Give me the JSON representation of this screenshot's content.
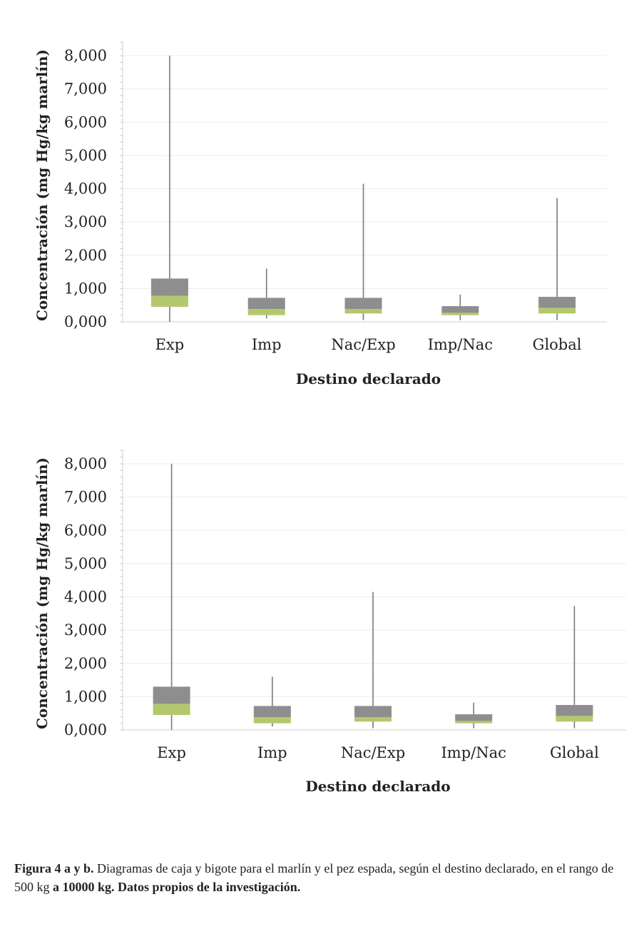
{
  "chart_data": [
    {
      "type": "boxplot",
      "title": "",
      "xlabel": "Destino declarado",
      "ylabel": "Concentración (mg Hg/kg marlín)",
      "categories": [
        "Exp",
        "Imp",
        "Nac/Exp",
        "Imp/Nac",
        "Global"
      ],
      "yticks": [
        "0,000",
        "1,000",
        "2,000",
        "3,000",
        "4,000",
        "5,000",
        "6,000",
        "7,000",
        "8,000"
      ],
      "ylim": [
        0,
        8
      ],
      "grid": true,
      "boxes": [
        {
          "category": "Exp",
          "min": 0.0,
          "q1": 0.45,
          "median": 0.78,
          "q3": 1.3,
          "max": 8.0
        },
        {
          "category": "Imp",
          "min": 0.1,
          "q1": 0.2,
          "median": 0.38,
          "q3": 0.72,
          "max": 1.6
        },
        {
          "category": "Nac/Exp",
          "min": 0.05,
          "q1": 0.25,
          "median": 0.38,
          "q3": 0.72,
          "max": 4.15
        },
        {
          "category": "Imp/Nac",
          "min": 0.05,
          "q1": 0.2,
          "median": 0.27,
          "q3": 0.47,
          "max": 0.82
        },
        {
          "category": "Global",
          "min": 0.05,
          "q1": 0.25,
          "median": 0.42,
          "q3": 0.75,
          "max": 3.72
        }
      ]
    },
    {
      "type": "boxplot",
      "title": "",
      "xlabel": "Destino declarado",
      "ylabel": "Concentración (mg Hg/kg marlín)",
      "categories": [
        "Exp",
        "Imp",
        "Nac/Exp",
        "Imp/Nac",
        "Global"
      ],
      "yticks": [
        "0,000",
        "1,000",
        "2,000",
        "3,000",
        "4,000",
        "5,000",
        "6,000",
        "7,000",
        "8,000"
      ],
      "ylim": [
        0,
        8
      ],
      "grid": true,
      "boxes": [
        {
          "category": "Exp",
          "min": 0.0,
          "q1": 0.45,
          "median": 0.78,
          "q3": 1.3,
          "max": 8.0
        },
        {
          "category": "Imp",
          "min": 0.1,
          "q1": 0.2,
          "median": 0.38,
          "q3": 0.72,
          "max": 1.6
        },
        {
          "category": "Nac/Exp",
          "min": 0.05,
          "q1": 0.25,
          "median": 0.38,
          "q3": 0.72,
          "max": 4.15
        },
        {
          "category": "Imp/Nac",
          "min": 0.05,
          "q1": 0.2,
          "median": 0.27,
          "q3": 0.47,
          "max": 0.82
        },
        {
          "category": "Global",
          "min": 0.05,
          "q1": 0.25,
          "median": 0.42,
          "q3": 0.75,
          "max": 3.72
        }
      ]
    }
  ],
  "colors": {
    "upper_box": "#8e8e8e",
    "lower_box": "#b3c86e",
    "whisker": "#7a7a7a",
    "grid": "#ececec",
    "axis": "#cfcfcf"
  },
  "caption": {
    "bold_prefix": "Figura 4 a y b.",
    "text": " Diagramas de caja y bigote para el marlín y el pez espada, según el destino declarado, en el rango de 500 kg ",
    "bold_suffix": "a 10000 kg. Datos propios de la investigación."
  }
}
